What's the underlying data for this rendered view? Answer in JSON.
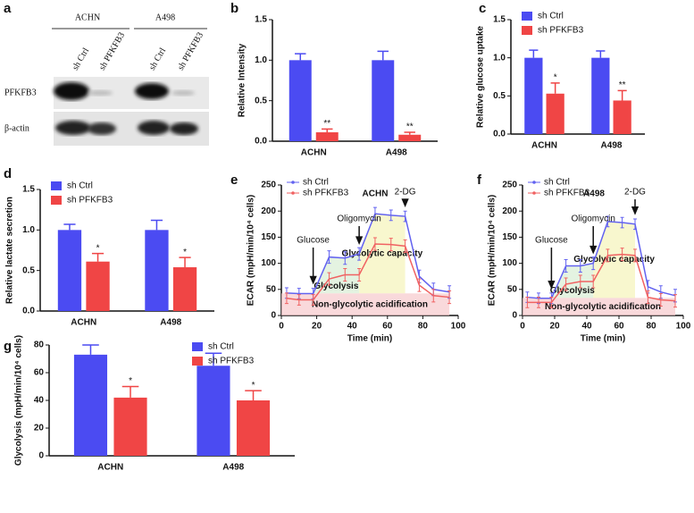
{
  "blot": {
    "panel": "a",
    "groups": [
      "ACHN",
      "A498"
    ],
    "lanes": [
      "sh Ctrl",
      "sh PFKFB3",
      "sh Ctrl",
      "sh PFKFB3"
    ],
    "rows": [
      "PFKFB3",
      "β-actin"
    ]
  },
  "chart_data": [
    {
      "type": "bar",
      "panel": "b",
      "ylabel": "Relative Intensity",
      "categories": [
        "ACHN",
        "A498"
      ],
      "series": [
        {
          "name": "sh Ctrl",
          "color": "#4b4bf2",
          "values": [
            1.0,
            1.0
          ],
          "errors": [
            0.08,
            0.11
          ]
        },
        {
          "name": "sh PFKFB3",
          "color": "#f04545",
          "values": [
            0.11,
            0.08
          ],
          "errors": [
            0.04,
            0.03
          ],
          "sig_labels": [
            "**",
            "**"
          ]
        }
      ],
      "ylim": [
        0,
        1.5
      ],
      "yticks": [
        {
          "value": 0,
          "label": "0.0"
        },
        0.5,
        {
          "value": 1,
          "label": "1.0"
        },
        1.5
      ],
      "legend": "none"
    },
    {
      "type": "bar",
      "panel": "c",
      "ylabel": "Relative glucose uptake",
      "categories": [
        "ACHN",
        "A498"
      ],
      "series": [
        {
          "name": "sh Ctrl",
          "color": "#4b4bf2",
          "values": [
            1.0,
            1.0
          ],
          "errors": [
            0.1,
            0.09
          ]
        },
        {
          "name": "sh PFKFB3",
          "color": "#f04545",
          "values": [
            0.53,
            0.44
          ],
          "errors": [
            0.14,
            0.13
          ],
          "sig_labels": [
            "*",
            "**"
          ]
        }
      ],
      "ylim": [
        0,
        1.5
      ],
      "yticks": [
        {
          "value": 0,
          "label": "0.0"
        },
        0.5,
        {
          "value": 1,
          "label": "1.0"
        },
        1.5
      ],
      "legend": "upper-left"
    },
    {
      "type": "bar",
      "panel": "d",
      "ylabel": "Relative lactate secretion",
      "categories": [
        "ACHN",
        "A498"
      ],
      "series": [
        {
          "name": "sh Ctrl",
          "color": "#4b4bf2",
          "values": [
            1.0,
            1.0
          ],
          "errors": [
            0.07,
            0.12
          ]
        },
        {
          "name": "sh PFKFB3",
          "color": "#f04545",
          "values": [
            0.61,
            0.54
          ],
          "errors": [
            0.1,
            0.12
          ],
          "sig_labels": [
            "*",
            "*"
          ]
        }
      ],
      "ylim": [
        0,
        1.5
      ],
      "yticks": [
        {
          "value": 0,
          "label": "0.0"
        },
        0.5,
        {
          "value": 1,
          "label": "1.0"
        },
        1.5
      ],
      "legend": "upper-left"
    },
    {
      "type": "line",
      "panel": "e",
      "title": "ACHN",
      "xlabel": "Time (min)",
      "ylabel": "ECAR (mpH/min/10⁴ cells)",
      "x": [
        3,
        10,
        18,
        27,
        36,
        44,
        53,
        62,
        70,
        78,
        86,
        95
      ],
      "series": [
        {
          "name": "sh Ctrl",
          "color": "#6262f0",
          "values": [
            43,
            42,
            42,
            112,
            110,
            118,
            195,
            192,
            190,
            75,
            50,
            45
          ],
          "errors": [
            10,
            10,
            10,
            12,
            12,
            12,
            12,
            10,
            10,
            12,
            12,
            12
          ]
        },
        {
          "name": "sh PFKFB3",
          "color": "#f06262",
          "values": [
            33,
            30,
            30,
            70,
            78,
            78,
            137,
            136,
            133,
            58,
            38,
            35
          ],
          "errors": [
            10,
            10,
            10,
            12,
            12,
            12,
            12,
            12,
            12,
            12,
            12,
            12
          ]
        }
      ],
      "annotations": [
        {
          "label": "Glucose",
          "x": 18
        },
        {
          "label": "Oligomycin",
          "x": 44
        },
        {
          "label": "2-DG",
          "x": 70
        }
      ],
      "regions": [
        "Glycolysis",
        "Glycolytic capacity",
        "Non-glycolytic acidification"
      ],
      "xlim": [
        0,
        100
      ],
      "xticks": [
        0,
        20,
        40,
        60,
        80,
        100
      ],
      "ylim": [
        0,
        250
      ],
      "yticks": [
        0,
        50,
        100,
        150,
        200,
        250
      ],
      "legend": "upper-left"
    },
    {
      "type": "line",
      "panel": "f",
      "title": "A498",
      "xlabel": "Time (min)",
      "ylabel": "ECAR (mpH/min/10⁴ cells)",
      "x": [
        3,
        10,
        18,
        27,
        36,
        44,
        53,
        62,
        70,
        78,
        86,
        95
      ],
      "series": [
        {
          "name": "sh Ctrl",
          "color": "#6262f0",
          "values": [
            35,
            33,
            33,
            95,
            95,
            100,
            180,
            178,
            175,
            55,
            45,
            38
          ],
          "errors": [
            10,
            10,
            10,
            12,
            12,
            12,
            10,
            10,
            10,
            12,
            12,
            12
          ]
        },
        {
          "name": "sh PFKFB3",
          "color": "#f06262",
          "values": [
            25,
            25,
            25,
            60,
            65,
            65,
            115,
            117,
            115,
            35,
            30,
            28
          ],
          "errors": [
            10,
            10,
            10,
            12,
            12,
            12,
            12,
            12,
            12,
            12,
            12,
            12
          ]
        }
      ],
      "annotations": [
        {
          "label": "Glucose",
          "x": 18
        },
        {
          "label": "Oligomycin",
          "x": 44
        },
        {
          "label": "2-DG",
          "x": 70
        }
      ],
      "regions": [
        "Glycolysis",
        "Glycolytic capacity",
        "Non-glycolytic acidification"
      ],
      "xlim": [
        0,
        100
      ],
      "xticks": [
        0,
        20,
        40,
        60,
        80,
        100
      ],
      "ylim": [
        0,
        250
      ],
      "yticks": [
        0,
        50,
        100,
        150,
        200,
        250
      ],
      "legend": "upper-left"
    },
    {
      "type": "bar",
      "panel": "g",
      "ylabel": "Glycolysis (mpH/min/10⁴ cells)",
      "categories": [
        "ACHN",
        "A498"
      ],
      "series": [
        {
          "name": "sh Ctrl",
          "color": "#4b4bf2",
          "values": [
            73,
            65
          ],
          "errors": [
            7,
            9
          ]
        },
        {
          "name": "sh PFKFB3",
          "color": "#f04545",
          "values": [
            42,
            40
          ],
          "errors": [
            8,
            7
          ],
          "sig_labels": [
            "*",
            "*"
          ]
        }
      ],
      "ylim": [
        0,
        80
      ],
      "yticks": [
        0,
        20,
        40,
        60,
        80
      ],
      "legend": "upper-right"
    }
  ]
}
